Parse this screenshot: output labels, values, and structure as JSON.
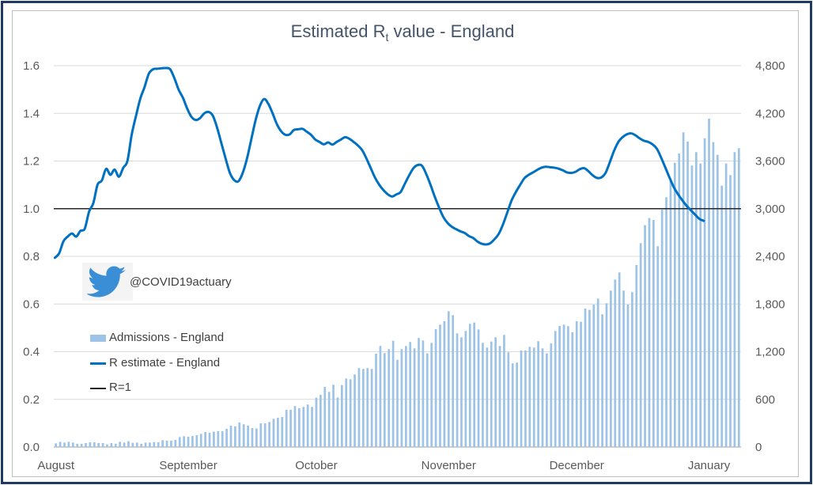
{
  "header": {
    "title_main": "Estimated R",
    "title_subscript": "t",
    "title_rest": " value - England"
  },
  "watermark": {
    "icon": "twitter-bird-icon",
    "handle": "@COVID19actuary"
  },
  "legend": {
    "position": "left-middle",
    "items": [
      {
        "label": "Admissions - England",
        "marker": "bar",
        "color": "#9DC3E6"
      },
      {
        "label": "R estimate - England",
        "marker": "line",
        "color": "#0070C0"
      },
      {
        "label": "R=1",
        "marker": "line",
        "color": "#262626"
      }
    ]
  },
  "colors": {
    "frame": "#1F3864",
    "bars": "#9DC3E6",
    "r_line": "#0070C0",
    "r1_line": "#262626",
    "grid": "#D9D9D9",
    "title": "#44546A"
  },
  "chart_data": {
    "type": "bar",
    "title": "Estimated Rt value - England",
    "xlabel": "",
    "ylabel": "",
    "grid": true,
    "category_count": 161,
    "x_ticks": [
      {
        "label": "August",
        "index": 0
      },
      {
        "label": "September",
        "index": 31
      },
      {
        "label": "October",
        "index": 61
      },
      {
        "label": "November",
        "index": 92
      },
      {
        "label": "December",
        "index": 122
      },
      {
        "label": "January",
        "index": 153
      }
    ],
    "y_left": {
      "range": [
        0,
        1.6
      ],
      "ticks": [
        "0.0",
        "0.2",
        "0.4",
        "0.6",
        "0.8",
        "1.0",
        "1.2",
        "1.4",
        "1.6"
      ]
    },
    "y_right": {
      "range": [
        0,
        4800
      ],
      "ticks": [
        "0",
        "600",
        "1,200",
        "1,800",
        "2,400",
        "3,000",
        "3,600",
        "4,200",
        "4,800"
      ]
    },
    "series": [
      {
        "name": "Admissions - England",
        "type": "bar",
        "axis": "right",
        "values": [
          46,
          66,
          56,
          66,
          56,
          40,
          40,
          50,
          60,
          60,
          50,
          50,
          33,
          50,
          40,
          66,
          56,
          73,
          53,
          56,
          40,
          56,
          56,
          63,
          60,
          86,
          80,
          80,
          90,
          126,
          136,
          130,
          139,
          149,
          166,
          189,
          179,
          193,
          199,
          199,
          229,
          269,
          259,
          309,
          286,
          269,
          239,
          233,
          299,
          299,
          315,
          355,
          368,
          378,
          468,
          468,
          515,
          488,
          505,
          535,
          505,
          621,
          657,
          757,
          694,
          784,
          624,
          780,
          863,
          853,
          913,
          993,
          983,
          993,
          983,
          1175,
          1272,
          1182,
          1232,
          1338,
          1099,
          1232,
          1272,
          1322,
          1242,
          1372,
          1341,
          1179,
          1311,
          1484,
          1541,
          1584,
          1710,
          1660,
          1431,
          1381,
          1461,
          1551,
          1567,
          1481,
          1311,
          1252,
          1328,
          1381,
          1272,
          1411,
          1192,
          1053,
          1063,
          1215,
          1215,
          1262,
          1252,
          1332,
          1242,
          1179,
          1305,
          1461,
          1524,
          1541,
          1521,
          1444,
          1584,
          1577,
          1743,
          1726,
          1793,
          1869,
          1670,
          1810,
          1969,
          2108,
          2198,
          1969,
          1793,
          1949,
          2291,
          2566,
          2792,
          2882,
          2858,
          2527,
          2988,
          3144,
          3347,
          3579,
          3695,
          3961,
          3845,
          3543,
          3712,
          3569,
          3887,
          4133,
          3838,
          3678,
          3290,
          3569,
          3423,
          3712,
          3762
        ]
      },
      {
        "name": "R estimate - England",
        "type": "line",
        "axis": "left",
        "values": [
          0.794,
          0.813,
          0.863,
          0.883,
          0.896,
          0.883,
          0.907,
          0.916,
          0.987,
          1.023,
          1.101,
          1.118,
          1.167,
          1.142,
          1.164,
          1.134,
          1.171,
          1.201,
          1.311,
          1.389,
          1.461,
          1.51,
          1.566,
          1.585,
          1.587,
          1.589,
          1.59,
          1.585,
          1.547,
          1.499,
          1.465,
          1.42,
          1.385,
          1.372,
          1.38,
          1.4,
          1.406,
          1.39,
          1.34,
          1.275,
          1.21,
          1.15,
          1.12,
          1.115,
          1.15,
          1.21,
          1.29,
          1.37,
          1.43,
          1.46,
          1.44,
          1.4,
          1.355,
          1.325,
          1.31,
          1.312,
          1.33,
          1.333,
          1.335,
          1.323,
          1.31,
          1.29,
          1.28,
          1.27,
          1.278,
          1.269,
          1.28,
          1.29,
          1.3,
          1.293,
          1.28,
          1.265,
          1.245,
          1.21,
          1.17,
          1.13,
          1.1,
          1.077,
          1.06,
          1.051,
          1.06,
          1.07,
          1.105,
          1.14,
          1.17,
          1.183,
          1.18,
          1.145,
          1.1,
          1.05,
          1.005,
          0.965,
          0.94,
          0.924,
          0.914,
          0.905,
          0.898,
          0.885,
          0.877,
          0.862,
          0.853,
          0.85,
          0.855,
          0.872,
          0.895,
          0.935,
          0.985,
          1.035,
          1.07,
          1.1,
          1.128,
          1.142,
          1.152,
          1.163,
          1.172,
          1.176,
          1.174,
          1.172,
          1.168,
          1.161,
          1.152,
          1.15,
          1.155,
          1.166,
          1.17,
          1.157,
          1.14,
          1.129,
          1.131,
          1.15,
          1.195,
          1.243,
          1.28,
          1.3,
          1.312,
          1.316,
          1.308,
          1.295,
          1.285,
          1.28,
          1.27,
          1.252,
          1.215,
          1.173,
          1.13,
          1.09,
          1.06,
          1.035,
          1.012,
          0.993,
          0.975,
          0.957,
          0.949
        ]
      },
      {
        "name": "R=1",
        "type": "line",
        "axis": "left",
        "constant": 1.0
      }
    ]
  }
}
